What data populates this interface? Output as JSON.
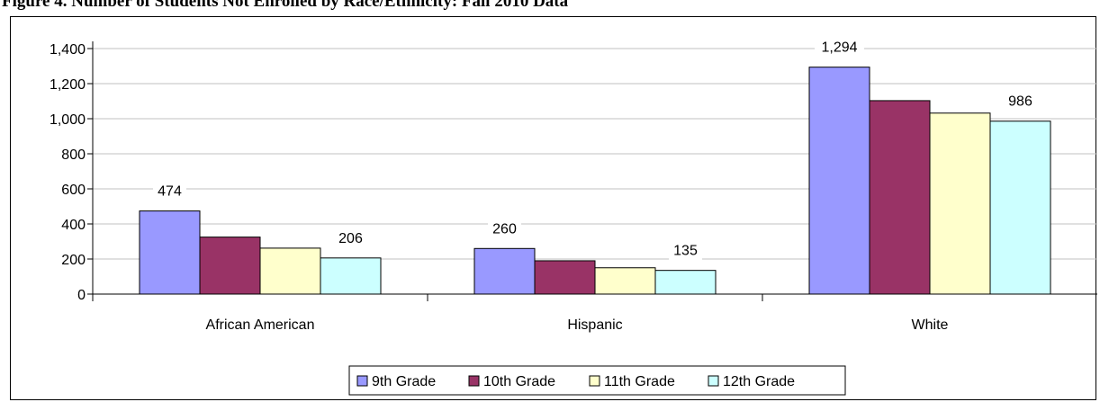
{
  "heading": "Figure 4. Number of Students Not Enrolled by Race/Ethnicity: Fall 2010 Data",
  "chart_data": {
    "type": "bar",
    "title": "",
    "xlabel": "",
    "ylabel": "",
    "ylim": [
      0,
      1400
    ],
    "yticks": [
      "0",
      "200",
      "400",
      "600",
      "800",
      "1,000",
      "1,200",
      "1,400"
    ],
    "grid": true,
    "legend_position": "bottom",
    "categories": [
      "African American",
      "Hispanic",
      "White"
    ],
    "series": [
      {
        "name": "9th Grade",
        "color": "#9999ff",
        "values": [
          474,
          260,
          1294
        ],
        "labels": [
          "474",
          "260",
          "1,294"
        ]
      },
      {
        "name": "10th Grade",
        "color": "#993366",
        "values": [
          325,
          190,
          1103
        ],
        "labels": [
          "",
          "",
          ""
        ]
      },
      {
        "name": "11th Grade",
        "color": "#ffffcc",
        "values": [
          262,
          150,
          1032
        ],
        "labels": [
          "",
          "",
          ""
        ]
      },
      {
        "name": "12th Grade",
        "color": "#ccffff",
        "values": [
          206,
          135,
          986
        ],
        "labels": [
          "206",
          "135",
          "986"
        ]
      }
    ]
  }
}
